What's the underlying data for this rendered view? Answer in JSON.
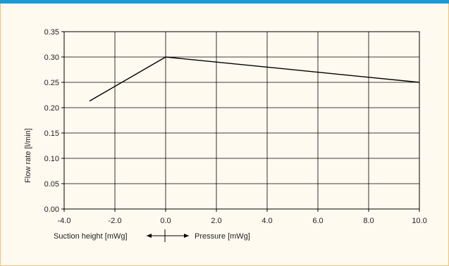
{
  "colors": {
    "accent_bar": "#1a9ad6",
    "background": "#fffaf0",
    "border": "#f0c070",
    "grid": "#000000",
    "line": "#000000"
  },
  "chart_data": {
    "type": "line",
    "ylabel": "Flow rate [l/min]",
    "xlim": [
      -4.0,
      10.0
    ],
    "ylim": [
      0.0,
      0.35
    ],
    "x_ticks": [
      -4.0,
      -2.0,
      0.0,
      2.0,
      4.0,
      6.0,
      8.0,
      10.0
    ],
    "x_tick_labels": [
      "-4.0",
      "-2.0",
      "0.0",
      "2.0",
      "4.0",
      "6.0",
      "8.0",
      "10.0"
    ],
    "y_ticks": [
      0.0,
      0.05,
      0.1,
      0.15,
      0.2,
      0.25,
      0.3,
      0.35
    ],
    "y_tick_labels": [
      "0.00",
      "0.05",
      "0.10",
      "0.15",
      "0.20",
      "0.25",
      "0.30",
      "0.35"
    ],
    "grid": true,
    "series": [
      {
        "x": [
          -3.0,
          0.0,
          10.0
        ],
        "y": [
          0.213,
          0.3,
          0.25
        ]
      }
    ],
    "x_annotation": {
      "left_label": "Suction height [mWg]",
      "right_label": "Pressure [mWg]"
    }
  }
}
